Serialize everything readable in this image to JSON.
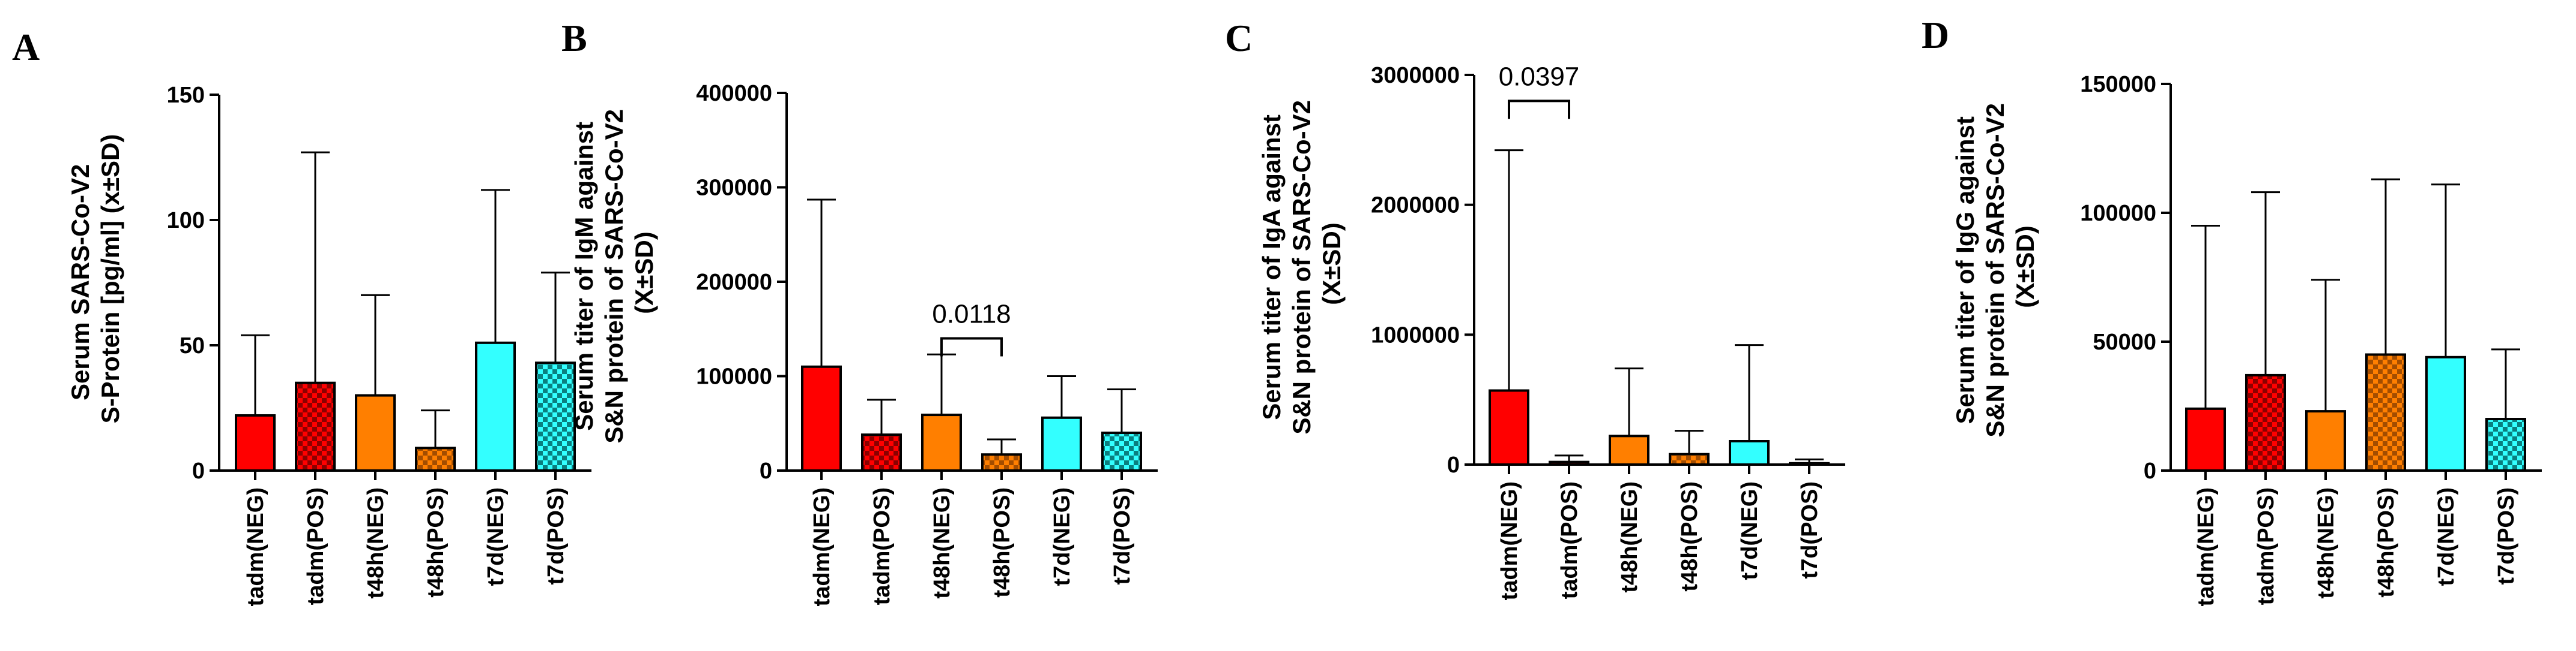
{
  "chart_data": [
    {
      "type": "bar",
      "panel": "A",
      "ylabel_lines": [
        "Serum SARS-Co-V2",
        "S-Protein [pg/ml] (x±SD)"
      ],
      "ylim": [
        0,
        150
      ],
      "yticks": [
        0,
        50,
        100,
        150
      ],
      "ytick_labels": [
        "0",
        "50",
        "100",
        "150"
      ],
      "categories": [
        "tadm(NEG)",
        "tadm(POS)",
        "t48h(NEG)",
        "t48h(POS)",
        "t7d(NEG)",
        "t7d(POS)"
      ],
      "values": [
        22,
        35,
        30,
        9,
        51,
        43
      ],
      "sd_upper": [
        54,
        127,
        70,
        24,
        112,
        79
      ],
      "significance": []
    },
    {
      "type": "bar",
      "panel": "B",
      "ylabel_lines": [
        "Serum titer of IgM against",
        "S&N protein of SARS-Co-V2",
        "(X±SD)"
      ],
      "ylim": [
        0,
        400000
      ],
      "yticks": [
        0,
        100000,
        200000,
        300000,
        400000
      ],
      "ytick_labels": [
        "0",
        "100000",
        "200000",
        "300000",
        "400000"
      ],
      "categories": [
        "tadm(NEG)",
        "tadm(POS)",
        "t48h(NEG)",
        "t48h(POS)",
        "t7d(NEG)",
        "t7d(POS)"
      ],
      "values": [
        110000,
        38000,
        59000,
        17000,
        56000,
        40000
      ],
      "sd_upper": [
        287000,
        75000,
        123000,
        33000,
        100000,
        86000
      ],
      "significance": [
        {
          "from": 2,
          "to": 3,
          "label": "0.0118",
          "level": 140000
        }
      ]
    },
    {
      "type": "bar",
      "panel": "C",
      "ylabel_lines": [
        "Serum titer of IgA against",
        "S&N protein of SARS-Co-V2",
        "(X±SD)"
      ],
      "ylim": [
        0,
        3000000
      ],
      "yticks": [
        0,
        1000000,
        2000000,
        3000000
      ],
      "ytick_labels": [
        "0",
        "1000000",
        "2000000",
        "3000000"
      ],
      "categories": [
        "tadm(NEG)",
        "tadm(POS)",
        "t48h(NEG)",
        "t48h(POS)",
        "t7d(NEG)",
        "t7d(POS)"
      ],
      "values": [
        570000,
        20000,
        220000,
        80000,
        180000,
        10000
      ],
      "sd_upper": [
        2420000,
        70000,
        740000,
        260000,
        920000,
        40000
      ],
      "significance": [
        {
          "from": 0,
          "to": 1,
          "label": "0.0397",
          "level": 2800000
        }
      ]
    },
    {
      "type": "bar",
      "panel": "D",
      "ylabel_lines": [
        "Serum titer of IgG against",
        "S&N protein of SARS-Co-V2",
        "(X±SD)"
      ],
      "ylim": [
        0,
        150000
      ],
      "yticks": [
        0,
        50000,
        100000,
        150000
      ],
      "ytick_labels": [
        "0",
        "50000",
        "100000",
        "150000"
      ],
      "categories": [
        "tadm(NEG)",
        "tadm(POS)",
        "t48h(NEG)",
        "t48h(POS)",
        "t7d(NEG)",
        "t7d(POS)"
      ],
      "values": [
        24000,
        37000,
        23000,
        45000,
        44000,
        20000
      ],
      "sd_upper": [
        95000,
        108000,
        74000,
        113000,
        111000,
        47000
      ],
      "significance": []
    }
  ],
  "colors": {
    "red": "#ff0000",
    "dark_red": "#8b0000",
    "orange": "#ff7f00",
    "dark_orange": "#a34d00",
    "cyan": "#33ffff",
    "dark_cyan": "#0a7f7f"
  }
}
